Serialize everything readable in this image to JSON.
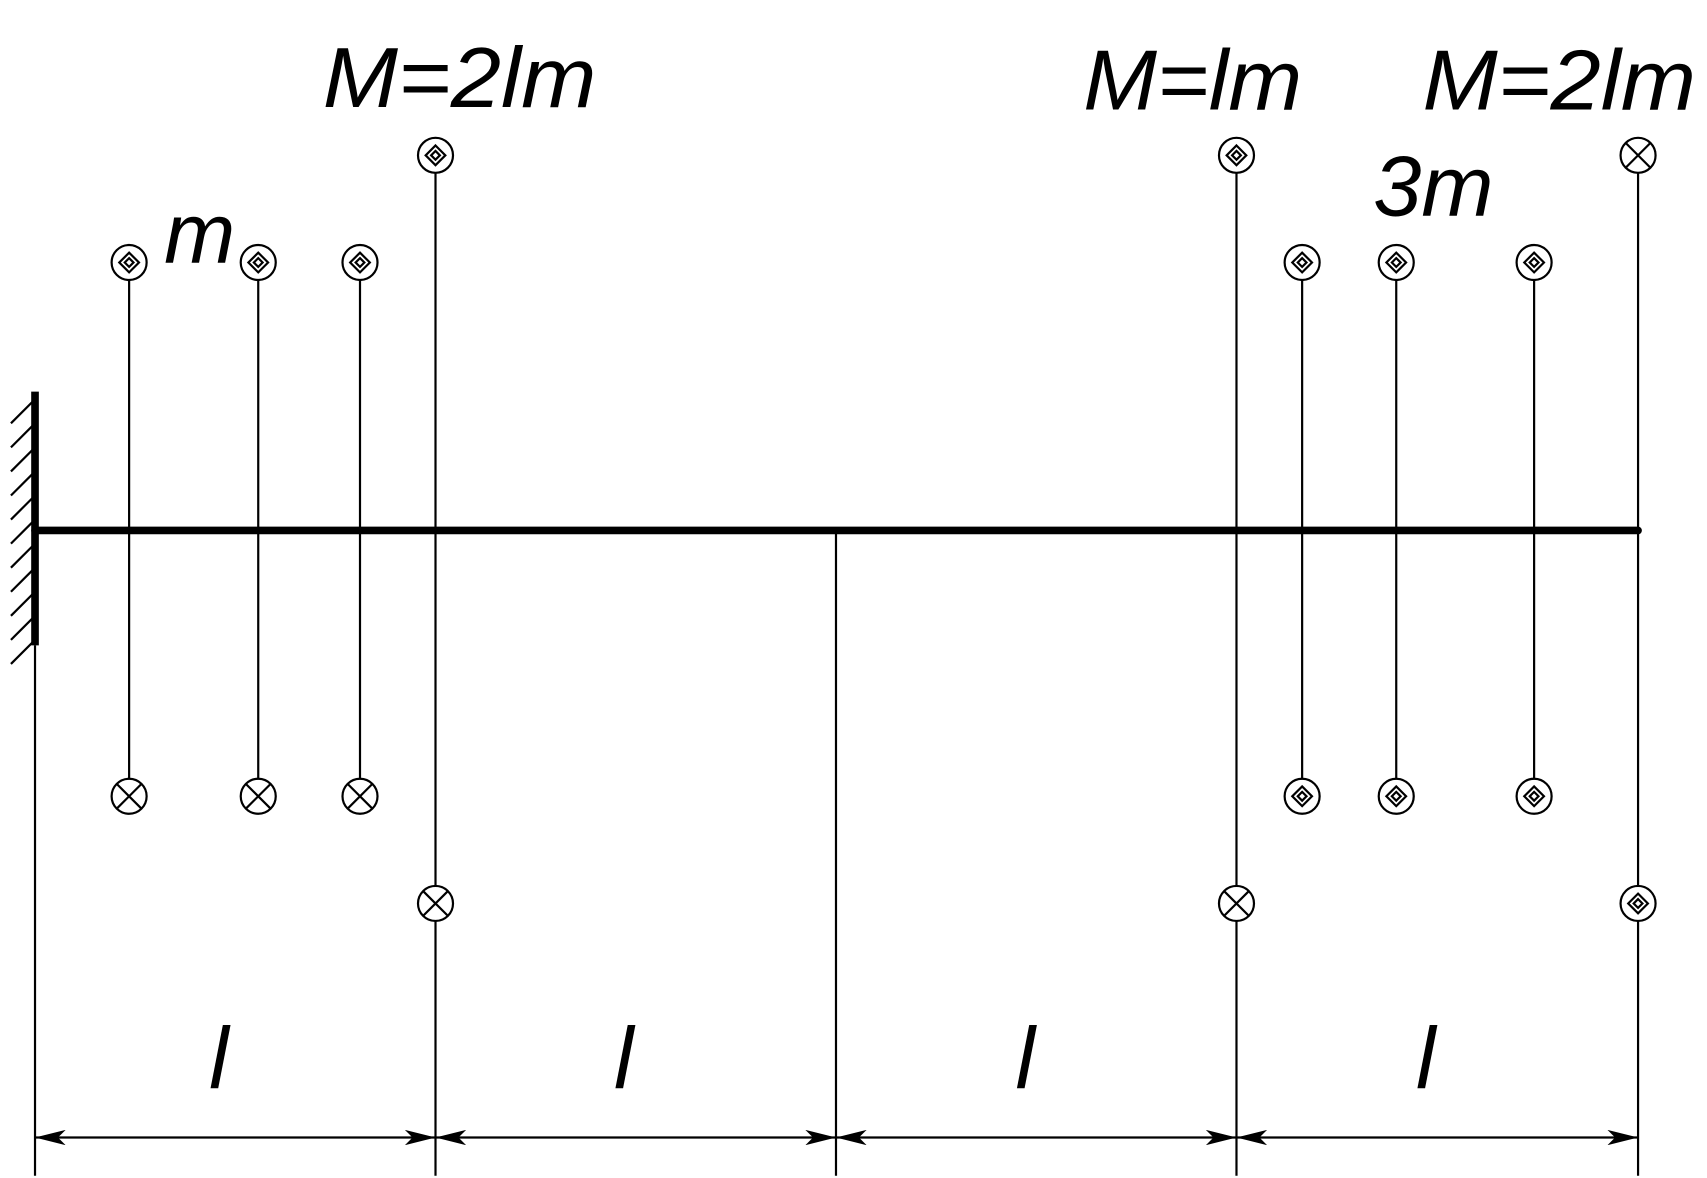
{
  "moment_labels": [
    "M=2lm",
    "M=lm",
    "M=2lm"
  ],
  "mass_labels": [
    "m",
    "3m"
  ],
  "dimension_labels": [
    "l",
    "l",
    "l",
    "l"
  ]
}
